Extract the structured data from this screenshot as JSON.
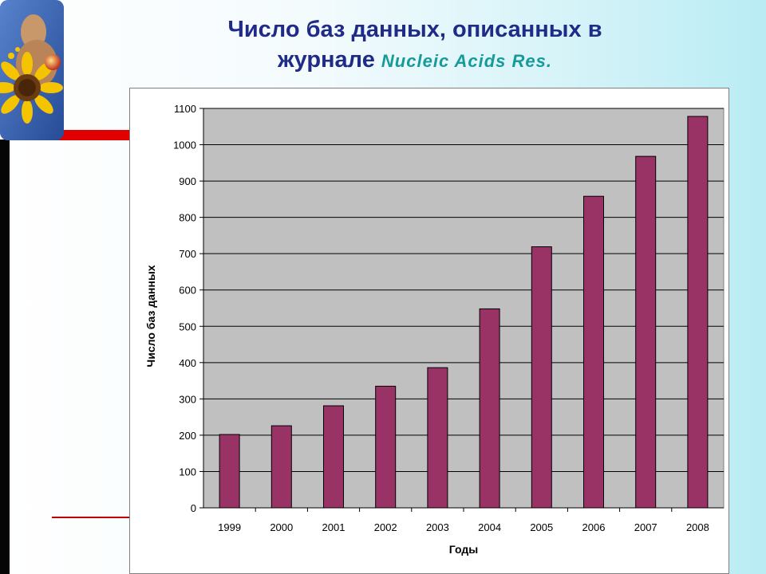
{
  "page": {
    "title_line1": "Число баз данных, описанных в",
    "title_line2": "журнале",
    "title_journal": "Nucleic Acids Res."
  },
  "colors": {
    "bar": "#993366",
    "plot_bg": "#c0c0c0",
    "title": "#1f2b87",
    "journal": "#169a9a"
  },
  "chart_data": {
    "type": "bar",
    "categories": [
      "1999",
      "2000",
      "2001",
      "2002",
      "2003",
      "2004",
      "2005",
      "2006",
      "2007",
      "2008"
    ],
    "values": [
      202,
      226,
      281,
      335,
      386,
      548,
      719,
      858,
      968,
      1078
    ],
    "xlabel": "Годы",
    "ylabel": "Число баз данных",
    "ylim": [
      0,
      1100
    ],
    "yticks": [
      "0",
      "100",
      "200",
      "300",
      "400",
      "500",
      "600",
      "700",
      "800",
      "900",
      "1000",
      "1100"
    ],
    "grid": true,
    "legend": "none"
  }
}
